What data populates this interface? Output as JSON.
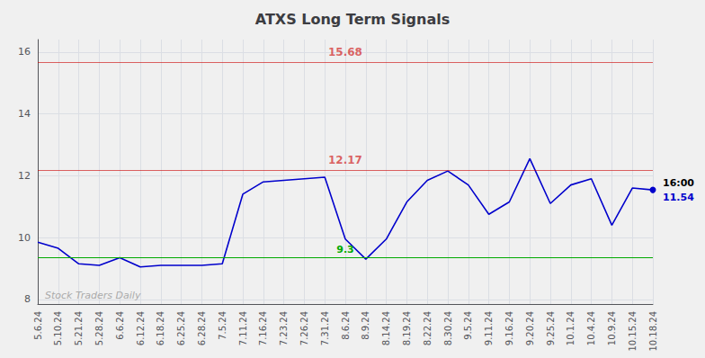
{
  "chart_data": {
    "type": "line",
    "title": "ATXS Long Term Signals",
    "categories": [
      "5.6.24",
      "5.10.24",
      "5.21.24",
      "5.28.24",
      "6.6.24",
      "6.12.24",
      "6.18.24",
      "6.25.24",
      "6.28.24",
      "7.5.24",
      "7.11.24",
      "7.16.24",
      "7.23.24",
      "7.26.24",
      "7.31.24",
      "8.6.24",
      "8.9.24",
      "8.14.24",
      "8.19.24",
      "8.22.24",
      "8.30.24",
      "9.5.24",
      "9.11.24",
      "9.16.24",
      "9.20.24",
      "9.25.24",
      "10.1.24",
      "10.4.24",
      "10.9.24",
      "10.15.24",
      "10.18.24"
    ],
    "values": [
      9.85,
      9.65,
      9.15,
      9.1,
      9.35,
      9.05,
      9.1,
      9.1,
      9.1,
      9.15,
      11.4,
      11.8,
      11.85,
      11.9,
      11.95,
      9.95,
      9.3,
      9.95,
      11.15,
      11.85,
      12.15,
      11.7,
      10.75,
      11.15,
      12.55,
      11.1,
      11.7,
      11.9,
      10.4,
      11.6,
      11.54
    ],
    "color": "#0000cc",
    "ylim": [
      7.85,
      16.4
    ],
    "yticks": [
      8,
      10,
      12,
      14,
      16
    ],
    "grid": true,
    "reference_lines": [
      {
        "value": 15.68,
        "label": "15.68",
        "color": "#cc0000"
      },
      {
        "value": 12.17,
        "label": "12.17",
        "color": "#cc0000"
      },
      {
        "value": 9.35,
        "label": "9.3",
        "color": "#00aa00",
        "x": "8.6.24"
      }
    ],
    "last_point": {
      "x": "10.18.24",
      "value": 11.54,
      "label": "11.54",
      "time": "16:00"
    },
    "watermark": "Stock Traders Daily"
  }
}
